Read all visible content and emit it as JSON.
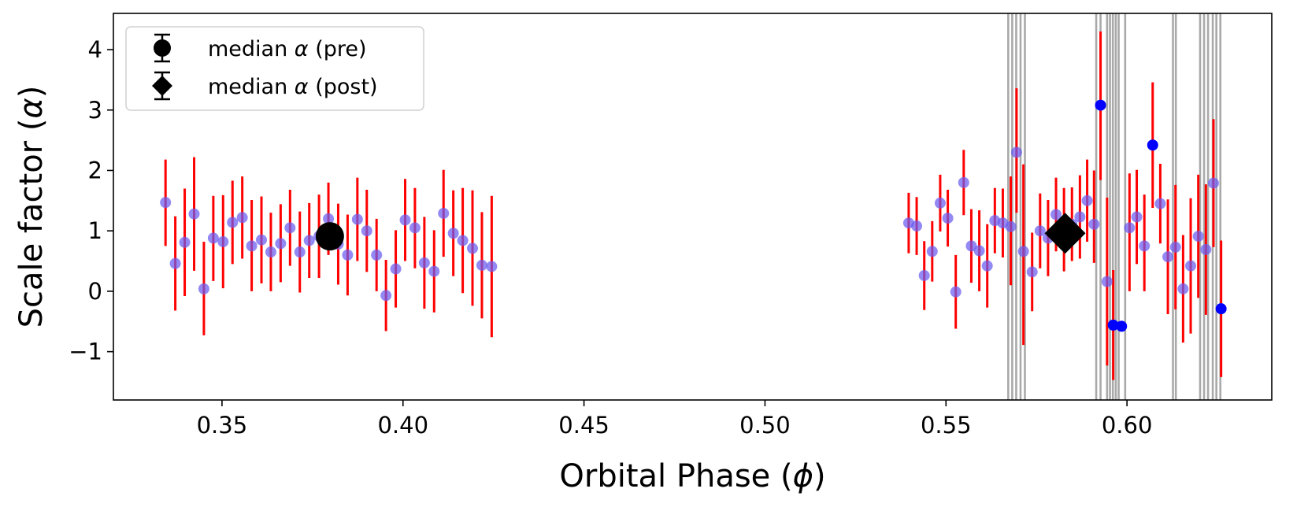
{
  "chart_data": {
    "type": "scatter",
    "xlabel_pre": "Orbital Phase (",
    "xlabel_sym": "ϕ",
    "xlabel_post": ")",
    "ylabel_pre": "Scale factor (",
    "ylabel_sym": "α",
    "ylabel_post": ")",
    "xlim": [
      0.32,
      0.64
    ],
    "ylim": [
      -1.8,
      4.6
    ],
    "xticks": [
      0.35,
      0.4,
      0.45,
      0.5,
      0.55,
      0.6
    ],
    "xtick_labels": [
      "0.35",
      "0.40",
      "0.45",
      "0.50",
      "0.55",
      "0.60"
    ],
    "yticks": [
      -1,
      0,
      1,
      2,
      3,
      4
    ],
    "ytick_labels": [
      "−1",
      "0",
      "1",
      "2",
      "3",
      "4"
    ],
    "grid": false,
    "legend_position": "top-left",
    "legend": [
      {
        "marker": "circle",
        "pre": "median ",
        "sym": "α",
        "post": " (pre)"
      },
      {
        "marker": "diamond",
        "pre": "median ",
        "sym": "α",
        "post": " (post)"
      }
    ],
    "colors": {
      "points": "#6a5cf0",
      "points_strong": "#0000ff",
      "errorbars": "#ff0000",
      "flagged_lines": "#a0a0a0",
      "median": "#000000"
    },
    "flagged_phases": [
      0.5672,
      0.5683,
      0.5694,
      0.5706,
      0.5718,
      0.5915,
      0.5927,
      0.5945,
      0.5953,
      0.5961,
      0.5969,
      0.5977,
      0.5995,
      0.6127,
      0.6135,
      0.6202,
      0.6213,
      0.6224,
      0.6237,
      0.6247,
      0.6258
    ],
    "series": [
      {
        "points": [
          {
            "x": 0.3344,
            "y": 1.47,
            "lo": 0.75,
            "hi": 2.18
          },
          {
            "x": 0.3371,
            "y": 0.46,
            "lo": -0.32,
            "hi": 1.24
          },
          {
            "x": 0.3397,
            "y": 0.81,
            "lo": -0.08,
            "hi": 1.7
          },
          {
            "x": 0.3423,
            "y": 1.28,
            "lo": 0.34,
            "hi": 2.22
          },
          {
            "x": 0.345,
            "y": 0.04,
            "lo": -0.73,
            "hi": 0.82
          },
          {
            "x": 0.3476,
            "y": 0.88,
            "lo": 0.17,
            "hi": 1.58
          },
          {
            "x": 0.3503,
            "y": 0.82,
            "lo": 0.05,
            "hi": 1.59
          },
          {
            "x": 0.3529,
            "y": 1.14,
            "lo": 0.45,
            "hi": 1.83
          },
          {
            "x": 0.3556,
            "y": 1.22,
            "lo": 0.54,
            "hi": 1.9
          },
          {
            "x": 0.3582,
            "y": 0.75,
            "lo": 0.0,
            "hi": 1.51
          },
          {
            "x": 0.3609,
            "y": 0.85,
            "lo": 0.13,
            "hi": 1.57
          },
          {
            "x": 0.3635,
            "y": 0.65,
            "lo": 0.0,
            "hi": 1.3
          },
          {
            "x": 0.3662,
            "y": 0.79,
            "lo": 0.15,
            "hi": 1.44
          },
          {
            "x": 0.3688,
            "y": 1.05,
            "lo": 0.42,
            "hi": 1.68
          },
          {
            "x": 0.3715,
            "y": 0.65,
            "lo": -0.02,
            "hi": 1.32
          },
          {
            "x": 0.3741,
            "y": 0.84,
            "lo": 0.22,
            "hi": 1.46
          },
          {
            "x": 0.3768,
            "y": 0.91,
            "lo": 0.22,
            "hi": 1.6
          },
          {
            "x": 0.3794,
            "y": 1.2,
            "lo": 0.6,
            "hi": 1.8
          },
          {
            "x": 0.3821,
            "y": 0.78,
            "lo": 0.11,
            "hi": 1.45
          },
          {
            "x": 0.3847,
            "y": 0.6,
            "lo": -0.07,
            "hi": 1.27
          },
          {
            "x": 0.3874,
            "y": 1.19,
            "lo": 0.5,
            "hi": 1.88
          },
          {
            "x": 0.39,
            "y": 1.0,
            "lo": 0.32,
            "hi": 1.68
          },
          {
            "x": 0.3927,
            "y": 0.6,
            "lo": 0.0,
            "hi": 1.2
          },
          {
            "x": 0.3953,
            "y": -0.07,
            "lo": -0.66,
            "hi": 0.52
          },
          {
            "x": 0.398,
            "y": 0.37,
            "lo": -0.27,
            "hi": 1.01
          },
          {
            "x": 0.4006,
            "y": 1.18,
            "lo": 0.5,
            "hi": 1.86
          },
          {
            "x": 0.4033,
            "y": 1.05,
            "lo": 0.38,
            "hi": 1.71
          },
          {
            "x": 0.4059,
            "y": 0.47,
            "lo": -0.29,
            "hi": 1.23
          },
          {
            "x": 0.4086,
            "y": 0.33,
            "lo": -0.35,
            "hi": 1.01
          },
          {
            "x": 0.4112,
            "y": 1.29,
            "lo": 0.57,
            "hi": 2.01
          },
          {
            "x": 0.4139,
            "y": 0.96,
            "lo": 0.25,
            "hi": 1.67
          },
          {
            "x": 0.4165,
            "y": 0.84,
            "lo": -0.03,
            "hi": 1.71
          },
          {
            "x": 0.4192,
            "y": 0.71,
            "lo": -0.24,
            "hi": 1.67
          },
          {
            "x": 0.4218,
            "y": 0.43,
            "lo": -0.45,
            "hi": 1.31
          },
          {
            "x": 0.4245,
            "y": 0.41,
            "lo": -0.76,
            "hi": 1.58
          },
          {
            "x": 0.5397,
            "y": 1.13,
            "lo": 0.63,
            "hi": 1.63
          },
          {
            "x": 0.5419,
            "y": 1.08,
            "lo": 0.6,
            "hi": 1.56
          },
          {
            "x": 0.544,
            "y": 0.26,
            "lo": -0.31,
            "hi": 0.83
          },
          {
            "x": 0.5462,
            "y": 0.66,
            "lo": 0.16,
            "hi": 1.16
          },
          {
            "x": 0.5484,
            "y": 1.46,
            "lo": 0.99,
            "hi": 1.93
          },
          {
            "x": 0.5505,
            "y": 1.21,
            "lo": 0.74,
            "hi": 1.68
          },
          {
            "x": 0.5527,
            "y": -0.01,
            "lo": -0.62,
            "hi": 0.6
          },
          {
            "x": 0.5549,
            "y": 1.8,
            "lo": 1.26,
            "hi": 2.34
          },
          {
            "x": 0.557,
            "y": 0.75,
            "lo": 0.14,
            "hi": 1.36
          },
          {
            "x": 0.5592,
            "y": 0.67,
            "lo": 0.0,
            "hi": 1.34
          },
          {
            "x": 0.5614,
            "y": 0.42,
            "lo": -0.27,
            "hi": 1.11
          },
          {
            "x": 0.5635,
            "y": 1.17,
            "lo": 0.63,
            "hi": 1.71
          },
          {
            "x": 0.5657,
            "y": 1.13,
            "lo": 0.56,
            "hi": 1.7
          },
          {
            "x": 0.5679,
            "y": 1.07,
            "lo": 0.1,
            "hi": 1.9
          },
          {
            "x": 0.5695,
            "y": 2.3,
            "lo": 1.3,
            "hi": 3.36
          },
          {
            "x": 0.5714,
            "y": 0.66,
            "lo": -0.89,
            "hi": 2.1
          },
          {
            "x": 0.5738,
            "y": 0.32,
            "lo": -0.33,
            "hi": 0.97
          },
          {
            "x": 0.576,
            "y": 1.0,
            "lo": 0.38,
            "hi": 1.62
          },
          {
            "x": 0.5782,
            "y": 0.88,
            "lo": 0.25,
            "hi": 1.51
          },
          {
            "x": 0.5804,
            "y": 1.27,
            "lo": 0.66,
            "hi": 1.88
          },
          {
            "x": 0.5826,
            "y": 1.02,
            "lo": 0.33,
            "hi": 1.71
          },
          {
            "x": 0.5848,
            "y": 1.11,
            "lo": 0.5,
            "hi": 1.72
          },
          {
            "x": 0.587,
            "y": 1.23,
            "lo": 0.54,
            "hi": 1.92
          },
          {
            "x": 0.589,
            "y": 1.5,
            "lo": 0.82,
            "hi": 2.18
          },
          {
            "x": 0.5909,
            "y": 1.11,
            "lo": 0.47,
            "hi": 2.0
          },
          {
            "x": 0.5927,
            "y": 3.08,
            "lo": 1.84,
            "hi": 4.3,
            "strong": true
          },
          {
            "x": 0.5945,
            "y": 0.16,
            "lo": -1.23,
            "hi": 1.55
          },
          {
            "x": 0.5962,
            "y": -0.56,
            "lo": -1.47,
            "hi": 0.35,
            "strong": true
          },
          {
            "x": 0.5985,
            "y": -0.58,
            "lo": -0.64,
            "hi": -0.52,
            "strong": true
          },
          {
            "x": 0.6007,
            "y": 1.05,
            "lo": 0.0,
            "hi": 1.95
          },
          {
            "x": 0.6027,
            "y": 1.23,
            "lo": 0.45,
            "hi": 2.01
          },
          {
            "x": 0.6048,
            "y": 0.75,
            "lo": 0.0,
            "hi": 1.6
          },
          {
            "x": 0.6071,
            "y": 2.42,
            "lo": 1.38,
            "hi": 3.46,
            "strong": true
          },
          {
            "x": 0.6092,
            "y": 1.45,
            "lo": 0.79,
            "hi": 2.11
          },
          {
            "x": 0.6113,
            "y": 0.57,
            "lo": -0.38,
            "hi": 1.52
          },
          {
            "x": 0.6134,
            "y": 0.73,
            "lo": -0.3,
            "hi": 1.76
          },
          {
            "x": 0.6155,
            "y": 0.04,
            "lo": -0.85,
            "hi": 0.93
          },
          {
            "x": 0.6176,
            "y": 0.42,
            "lo": -0.7,
            "hi": 1.54
          },
          {
            "x": 0.6197,
            "y": 0.91,
            "lo": -0.11,
            "hi": 1.93
          },
          {
            "x": 0.6218,
            "y": 0.69,
            "lo": -0.39,
            "hi": 1.77
          },
          {
            "x": 0.6239,
            "y": 1.79,
            "lo": 0.73,
            "hi": 2.85
          },
          {
            "x": 0.626,
            "y": -0.29,
            "lo": -1.42,
            "hi": 0.84,
            "strong": true
          }
        ]
      }
    ],
    "medians": [
      {
        "label": "pre",
        "marker": "circle",
        "x": 0.3798,
        "y": 0.91
      },
      {
        "label": "post",
        "marker": "diamond",
        "x": 0.5829,
        "y": 0.96
      }
    ]
  }
}
